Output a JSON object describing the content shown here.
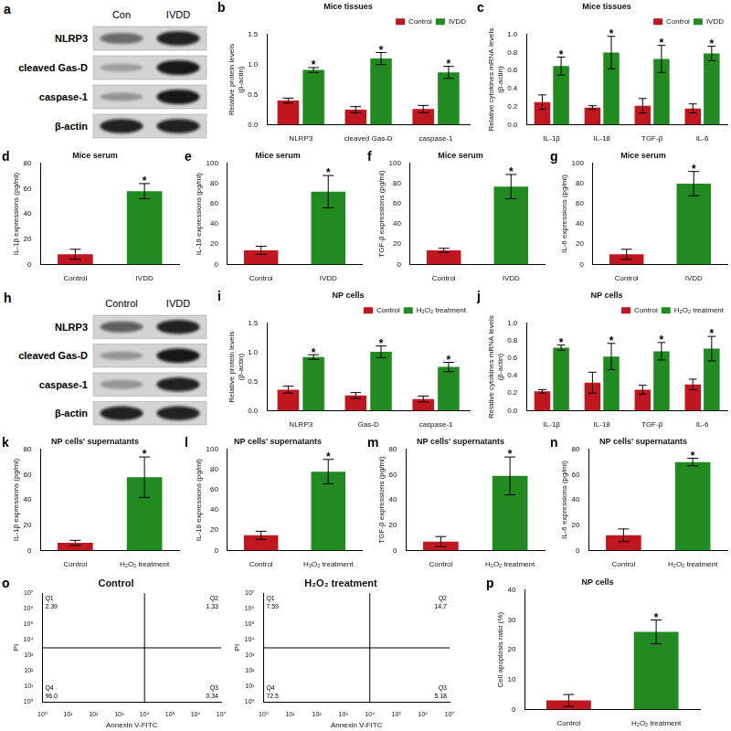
{
  "chart_data": [
    {
      "panel": "a",
      "type": "western_blot",
      "lanes": [
        "Con",
        "IVDD"
      ],
      "rows": [
        {
          "name": "NLRP3",
          "intensity": [
            0.55,
            0.9
          ]
        },
        {
          "name": "cleaved Gas-D",
          "intensity": [
            0.25,
            0.95
          ]
        },
        {
          "name": "caspase-1",
          "intensity": [
            0.3,
            0.95
          ]
        },
        {
          "name": "β-actin",
          "intensity": [
            0.9,
            0.9
          ]
        }
      ]
    },
    {
      "panel": "b",
      "type": "bar",
      "title": "Mice tissues",
      "ylabel": [
        "Relative protein levels",
        "(β-actin)"
      ],
      "categories": [
        "NLRP3",
        "cleaved Gas-D",
        "caspase-1"
      ],
      "series": [
        {
          "name": "Control",
          "color": "#c0161f",
          "values": [
            0.4,
            0.25,
            0.26
          ],
          "errors": [
            0.04,
            0.05,
            0.06
          ]
        },
        {
          "name": "IVDD",
          "color": "#218a21",
          "values": [
            0.91,
            1.1,
            0.87
          ],
          "errors": [
            0.04,
            0.1,
            0.1
          ],
          "annotations": [
            "*",
            "*",
            "*"
          ]
        }
      ],
      "ylim": [
        0,
        1.5
      ],
      "yticks": [
        {
          "value": 0,
          "label": "0.0"
        },
        0.5,
        {
          "value": 1,
          "label": "1.0"
        },
        1.5
      ],
      "grid": false,
      "legend": "top-right"
    },
    {
      "panel": "c",
      "type": "bar",
      "title": "Mice tissues",
      "ylabel": [
        "Relative cytokines mRNA levels",
        "(β-actin)"
      ],
      "categories": [
        "IL-1β",
        "IL-18",
        "TGF-β",
        "IL-6"
      ],
      "series": [
        {
          "name": "Control",
          "color": "#c0161f",
          "values": [
            0.25,
            0.19,
            0.21,
            0.18
          ],
          "errors": [
            0.08,
            0.02,
            0.08,
            0.05
          ]
        },
        {
          "name": "IVDD",
          "color": "#218a21",
          "values": [
            0.65,
            0.8,
            0.73,
            0.79
          ],
          "errors": [
            0.1,
            0.18,
            0.15,
            0.08
          ],
          "annotations": [
            "*",
            "*",
            "*",
            "*"
          ]
        }
      ],
      "ylim": [
        0,
        1
      ],
      "yticks": [
        {
          "value": 0,
          "label": "0.0"
        },
        0.2,
        0.4,
        0.6,
        0.8,
        {
          "value": 1,
          "label": "1.0"
        }
      ],
      "grid": false,
      "legend": "top-right"
    },
    {
      "panel": "d",
      "type": "bar",
      "title": "Mice serum",
      "ylabel": "IL-1β expressions (pg/ml)",
      "categories": [
        "Control",
        "IVDD"
      ],
      "values": [
        8,
        58
      ],
      "errors": [
        4,
        6
      ],
      "colors": [
        "#c0161f",
        "#218a21"
      ],
      "annotations": [
        null,
        "*"
      ],
      "ylim": [
        0,
        80
      ],
      "yticks": [
        0,
        20,
        40,
        60,
        80
      ],
      "grid": false
    },
    {
      "panel": "e",
      "type": "bar",
      "title": "Mice serum",
      "ylabel": "IL-18 expressions (pg/ml)",
      "categories": [
        "Control",
        "IVDD"
      ],
      "values": [
        14,
        72
      ],
      "errors": [
        4,
        16
      ],
      "colors": [
        "#c0161f",
        "#218a21"
      ],
      "annotations": [
        null,
        "*"
      ],
      "ylim": [
        0,
        100
      ],
      "yticks": [
        0,
        20,
        40,
        60,
        80,
        100
      ],
      "grid": false
    },
    {
      "panel": "f",
      "type": "bar",
      "title": "Mice serum",
      "ylabel": "TGF-β expressions (pg/ml)",
      "categories": [
        "Control",
        "IVDD"
      ],
      "values": [
        14,
        77
      ],
      "errors": [
        2,
        12
      ],
      "colors": [
        "#c0161f",
        "#218a21"
      ],
      "annotations": [
        null,
        "*"
      ],
      "ylim": [
        0,
        100
      ],
      "yticks": [
        0,
        20,
        40,
        60,
        80,
        100
      ],
      "grid": false
    },
    {
      "panel": "g",
      "type": "bar",
      "title": "Mice serum",
      "ylabel": "IL-6 expressions (pg/ml)",
      "categories": [
        "Control",
        "IVDD"
      ],
      "values": [
        10,
        80
      ],
      "errors": [
        5,
        12
      ],
      "colors": [
        "#c0161f",
        "#218a21"
      ],
      "annotations": [
        null,
        "*"
      ],
      "ylim": [
        0,
        100
      ],
      "yticks": [
        0,
        20,
        40,
        60,
        80,
        100
      ],
      "grid": false
    },
    {
      "panel": "h",
      "type": "western_blot",
      "lanes": [
        "Control",
        "IVDD"
      ],
      "rows": [
        {
          "name": "NLRP3",
          "intensity": [
            0.6,
            0.9
          ]
        },
        {
          "name": "cleaved Gas-D",
          "intensity": [
            0.3,
            0.95
          ]
        },
        {
          "name": "caspase-1",
          "intensity": [
            0.35,
            0.9
          ]
        },
        {
          "name": "β-actin",
          "intensity": [
            0.9,
            0.9
          ]
        }
      ]
    },
    {
      "panel": "i",
      "type": "bar",
      "title": "NP cells",
      "ylabel": [
        "Relative protein levels",
        "(β-actin)"
      ],
      "categories": [
        "NLRP3",
        "Gas-D",
        "caspase-1"
      ],
      "series": [
        {
          "name": "Control",
          "color": "#c0161f",
          "values": [
            0.36,
            0.26,
            0.2
          ],
          "errors": [
            0.06,
            0.05,
            0.05
          ]
        },
        {
          "name": "H₂O₂ treatment",
          "color": "#218a21",
          "values": [
            0.92,
            1.01,
            0.75
          ],
          "errors": [
            0.04,
            0.1,
            0.08
          ],
          "annotations": [
            "*",
            "*",
            "*"
          ]
        }
      ],
      "ylim": [
        0,
        1.5
      ],
      "yticks": [
        {
          "value": 0,
          "label": "0.0"
        },
        0.5,
        {
          "value": 1,
          "label": "1.0"
        },
        1.5
      ],
      "grid": false,
      "legend": "top-right"
    },
    {
      "panel": "j",
      "type": "bar",
      "title": "NP cells",
      "ylabel": [
        "Relative cytokines mRNA levels",
        "(β-actin)"
      ],
      "categories": [
        "IL-1β",
        "IL-18",
        "TGF-β",
        "IL-6"
      ],
      "series": [
        {
          "name": "Control",
          "color": "#c0161f",
          "values": [
            0.22,
            0.32,
            0.24,
            0.3
          ],
          "errors": [
            0.02,
            0.12,
            0.05,
            0.06
          ]
        },
        {
          "name": "H₂O₂ treatment",
          "color": "#218a21",
          "values": [
            0.72,
            0.62,
            0.68,
            0.71
          ],
          "errors": [
            0.03,
            0.15,
            0.1,
            0.14
          ],
          "annotations": [
            "*",
            "*",
            "*",
            "*"
          ]
        }
      ],
      "ylim": [
        0,
        1
      ],
      "yticks": [
        {
          "value": 0,
          "label": "0.0"
        },
        0.2,
        0.4,
        0.6,
        0.8,
        {
          "value": 1,
          "label": "1.0"
        }
      ],
      "grid": false,
      "legend": "top-right"
    },
    {
      "panel": "k",
      "type": "bar",
      "title": "NP cells' supernatants",
      "ylabel": "IL-1β expressions (pg/ml)",
      "categories": [
        "Control",
        "H₂O₂ treatment"
      ],
      "values": [
        6,
        58
      ],
      "errors": [
        2,
        16
      ],
      "colors": [
        "#c0161f",
        "#218a21"
      ],
      "annotations": [
        null,
        "*"
      ],
      "ylim": [
        0,
        80
      ],
      "yticks": [
        0,
        20,
        40,
        60,
        80
      ],
      "grid": false
    },
    {
      "panel": "l",
      "type": "bar",
      "title": "NP cells' supernatants",
      "ylabel": "IL-18 expressions (pg/ml)",
      "categories": [
        "Control",
        "H₂O₂ treatment"
      ],
      "values": [
        15,
        78
      ],
      "errors": [
        4,
        12
      ],
      "colors": [
        "#c0161f",
        "#218a21"
      ],
      "annotations": [
        null,
        "*"
      ],
      "ylim": [
        0,
        100
      ],
      "yticks": [
        0,
        20,
        40,
        60,
        80,
        100
      ],
      "grid": false
    },
    {
      "panel": "m",
      "type": "bar",
      "title": "NP cells' supernatants",
      "ylabel": "TGF-β expressions (pg/ml)",
      "categories": [
        "Control",
        "H₂O₂ treatment"
      ],
      "values": [
        7,
        59
      ],
      "errors": [
        4,
        15
      ],
      "colors": [
        "#c0161f",
        "#218a21"
      ],
      "annotations": [
        null,
        "*"
      ],
      "ylim": [
        0,
        80
      ],
      "yticks": [
        0,
        20,
        40,
        60,
        80
      ],
      "grid": false
    },
    {
      "panel": "n",
      "type": "bar",
      "title": "NP cells' supernatants",
      "ylabel": "IL-6 expressions (pg/ml)",
      "categories": [
        "Control",
        "H₂O₂ treatment"
      ],
      "values": [
        12,
        70
      ],
      "errors": [
        5,
        3
      ],
      "colors": [
        "#c0161f",
        "#218a21"
      ],
      "annotations": [
        null,
        "*"
      ],
      "ylim": [
        0,
        80
      ],
      "yticks": [
        0,
        20,
        40,
        60,
        80
      ],
      "grid": false
    },
    {
      "panel": "o",
      "type": "flow_cytometry",
      "xlabel": "Annexin V-FITC",
      "ylabel": "PI",
      "log": true,
      "grid": false,
      "xlim": [
        1,
        10000000
      ],
      "ylim": [
        1,
        10000000
      ],
      "xticks": [
        {
          "value": 1,
          "label": "10⁰"
        },
        {
          "value": 10,
          "label": "10¹"
        },
        {
          "value": 100,
          "label": "10²"
        },
        {
          "value": 1000,
          "label": "10³"
        },
        {
          "value": 10000,
          "label": "10⁴"
        },
        {
          "value": 100000,
          "label": "10⁵"
        },
        {
          "value": 1000000,
          "label": "10⁶"
        },
        {
          "value": 10000000,
          "label": "10⁷"
        }
      ],
      "yticks": [
        {
          "value": 1,
          "label": "10⁰"
        },
        {
          "value": 10,
          "label": "10¹"
        },
        {
          "value": 100,
          "label": "10²"
        },
        {
          "value": 1000,
          "label": "10³"
        },
        {
          "value": 10000,
          "label": "10⁴"
        },
        {
          "value": 100000,
          "label": "10⁵"
        },
        {
          "value": 1000000,
          "label": "10⁶"
        },
        {
          "value": 10000000,
          "label": "10⁷"
        }
      ],
      "gate": {
        "x": 10000,
        "y": 3000
      },
      "plots": [
        {
          "title": "Control",
          "quadrants": [
            {
              "name": "Q1",
              "value": 2.39
            },
            {
              "name": "Q2",
              "value": 1.33
            },
            {
              "name": "Q3",
              "value": 0.34
            },
            {
              "name": "Q4",
              "value": 96,
              "label": "96.0"
            }
          ]
        },
        {
          "title": "H₂O₂ treatment",
          "quadrants": [
            {
              "name": "Q1",
              "value": 7.59
            },
            {
              "name": "Q2",
              "value": 14.7
            },
            {
              "name": "Q3",
              "value": 5.18
            },
            {
              "name": "Q4",
              "value": 72.5
            }
          ]
        }
      ]
    },
    {
      "panel": "p",
      "type": "bar",
      "title": "NP cells",
      "ylabel": "Cell apoptosis ratio (%)",
      "categories": [
        "Control",
        "H₂O₂ treatment"
      ],
      "values": [
        3,
        26
      ],
      "errors": [
        2,
        4
      ],
      "colors": [
        "#c0161f",
        "#218a21"
      ],
      "annotations": [
        null,
        "*"
      ],
      "ylim": [
        0,
        40
      ],
      "yticks": [
        0,
        10,
        20,
        30,
        40
      ],
      "grid": false
    }
  ]
}
